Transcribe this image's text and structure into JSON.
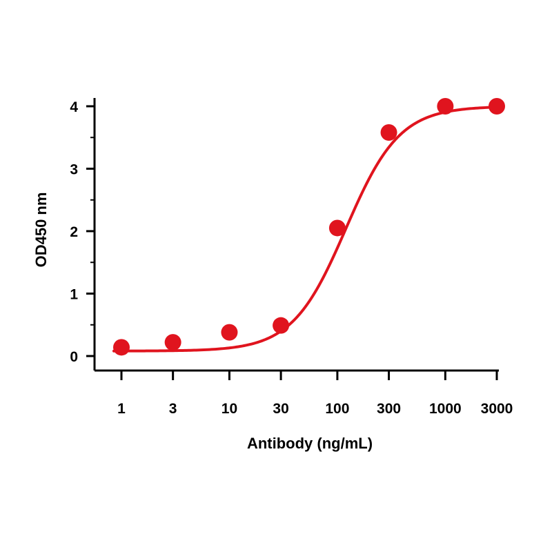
{
  "chart_data": {
    "type": "scatter",
    "title": "",
    "xlabel": "Antibody (ng/mL)",
    "ylabel": "OD450 nm",
    "x_scale": "log",
    "x_ticks": [
      1,
      3,
      10,
      30,
      100,
      300,
      1000,
      3000
    ],
    "x_tick_labels": [
      "1",
      "3",
      "10",
      "30",
      "100",
      "300",
      "1000",
      "3000"
    ],
    "y_ticks": [
      0,
      1,
      2,
      3,
      4
    ],
    "y_tick_labels": [
      "0",
      "1",
      "2",
      "3",
      "4"
    ],
    "ylim": [
      0,
      4
    ],
    "grid": false,
    "legend": "none",
    "color": "#e0141e",
    "series": [
      {
        "points": [
          {
            "x": 1,
            "y": 0.14
          },
          {
            "x": 3,
            "y": 0.22
          },
          {
            "x": 10,
            "y": 0.38
          },
          {
            "x": 30,
            "y": 0.49
          },
          {
            "x": 100,
            "y": 2.05
          },
          {
            "x": 300,
            "y": 3.58
          },
          {
            "x": 1000,
            "y": 4.0
          },
          {
            "x": 3000,
            "y": 4.0
          }
        ],
        "fit": {
          "model": "4PL",
          "bottom": 0.08,
          "top": 4.0,
          "ec50": 120,
          "hill": 1.75
        }
      }
    ]
  }
}
